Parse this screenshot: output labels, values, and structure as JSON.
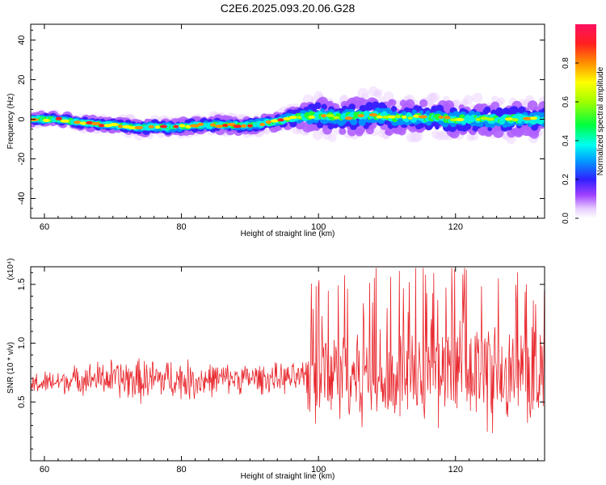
{
  "title": "C2E6.2025.093.20.06.G28",
  "chart_data": [
    {
      "type": "heatmap",
      "description_values": "Spectrogram of frequency vs height; normalized amplitude color-coded",
      "xlabel": "Height of straight line (km)",
      "ylabel": "Frequency (Hz)",
      "xlim": [
        58,
        133
      ],
      "ylim": [
        -50,
        48
      ],
      "xticks": [
        "60",
        "80",
        "100",
        "120"
      ],
      "yticks": [
        "-40",
        "-20",
        "0",
        "20",
        "40"
      ],
      "colorbar": {
        "label": "Normalized spectral amplitude",
        "range": [
          0.0,
          1.0
        ],
        "ticks": [
          "0.0",
          "0.2",
          "0.4",
          "0.6",
          "0.8"
        ]
      },
      "ridge": {
        "x": [
          58,
          62,
          66,
          70,
          74,
          78,
          82,
          86,
          90,
          94,
          97,
          100,
          104,
          108,
          112,
          116,
          120,
          124,
          128,
          132
        ],
        "y": [
          0,
          0,
          -2,
          -3,
          -4,
          -4,
          -3,
          -3,
          -3,
          -1,
          1,
          2,
          1,
          2,
          1,
          1,
          0,
          0,
          0,
          0
        ],
        "spread": [
          1.5,
          1.5,
          1.5,
          1.5,
          2,
          2,
          2,
          2,
          2,
          2,
          3,
          5,
          5,
          6,
          5,
          5,
          5,
          5,
          5,
          5
        ]
      }
    },
    {
      "type": "line",
      "xlabel": "Height of straight line (km)",
      "ylabel": "SNR (10 * v/v)",
      "y_multiplier": "(x10⁴)",
      "xlim": [
        58,
        133
      ],
      "ylim": [
        0.0,
        1.65
      ],
      "xticks": [
        "60",
        "80",
        "100",
        "120"
      ],
      "yticks": [
        "0.5",
        "1.0",
        "1.5"
      ],
      "color": "#e8272d",
      "envelope": {
        "x": [
          58,
          62,
          66,
          70,
          74,
          78,
          82,
          86,
          90,
          94,
          98,
          98.5,
          102,
          106,
          110,
          114,
          118,
          122,
          126,
          130,
          133
        ],
        "mean": [
          0.65,
          0.67,
          0.7,
          0.7,
          0.68,
          0.7,
          0.68,
          0.7,
          0.7,
          0.7,
          0.7,
          0.75,
          0.75,
          0.75,
          0.75,
          0.75,
          0.75,
          0.75,
          0.75,
          0.75,
          0.75
        ],
        "amp": [
          0.12,
          0.12,
          0.15,
          0.2,
          0.22,
          0.2,
          0.2,
          0.15,
          0.15,
          0.15,
          0.15,
          0.5,
          0.5,
          0.55,
          0.55,
          0.55,
          0.55,
          0.6,
          0.55,
          0.55,
          0.5
        ]
      }
    }
  ]
}
